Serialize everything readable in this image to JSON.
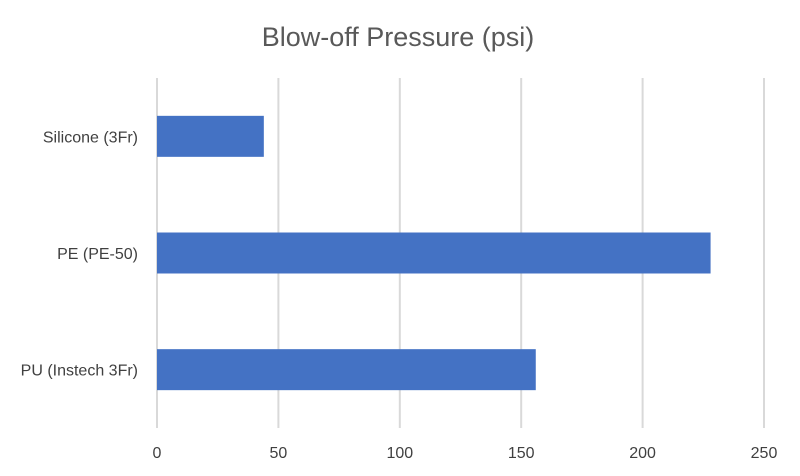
{
  "chart_data": {
    "type": "bar",
    "orientation": "horizontal",
    "title": "Blow-off Pressure (psi)",
    "xlabel": "",
    "ylabel": "",
    "categories": [
      "Silicone (3Fr)",
      "PE (PE-50)",
      "PU (Instech 3Fr)"
    ],
    "values": [
      44,
      228,
      156
    ],
    "xlim": [
      0,
      250
    ],
    "x_ticks": [
      "0",
      "50",
      "100",
      "150",
      "200",
      "250"
    ],
    "grid": true,
    "legend": "none",
    "bar_color": "#4472C4"
  }
}
